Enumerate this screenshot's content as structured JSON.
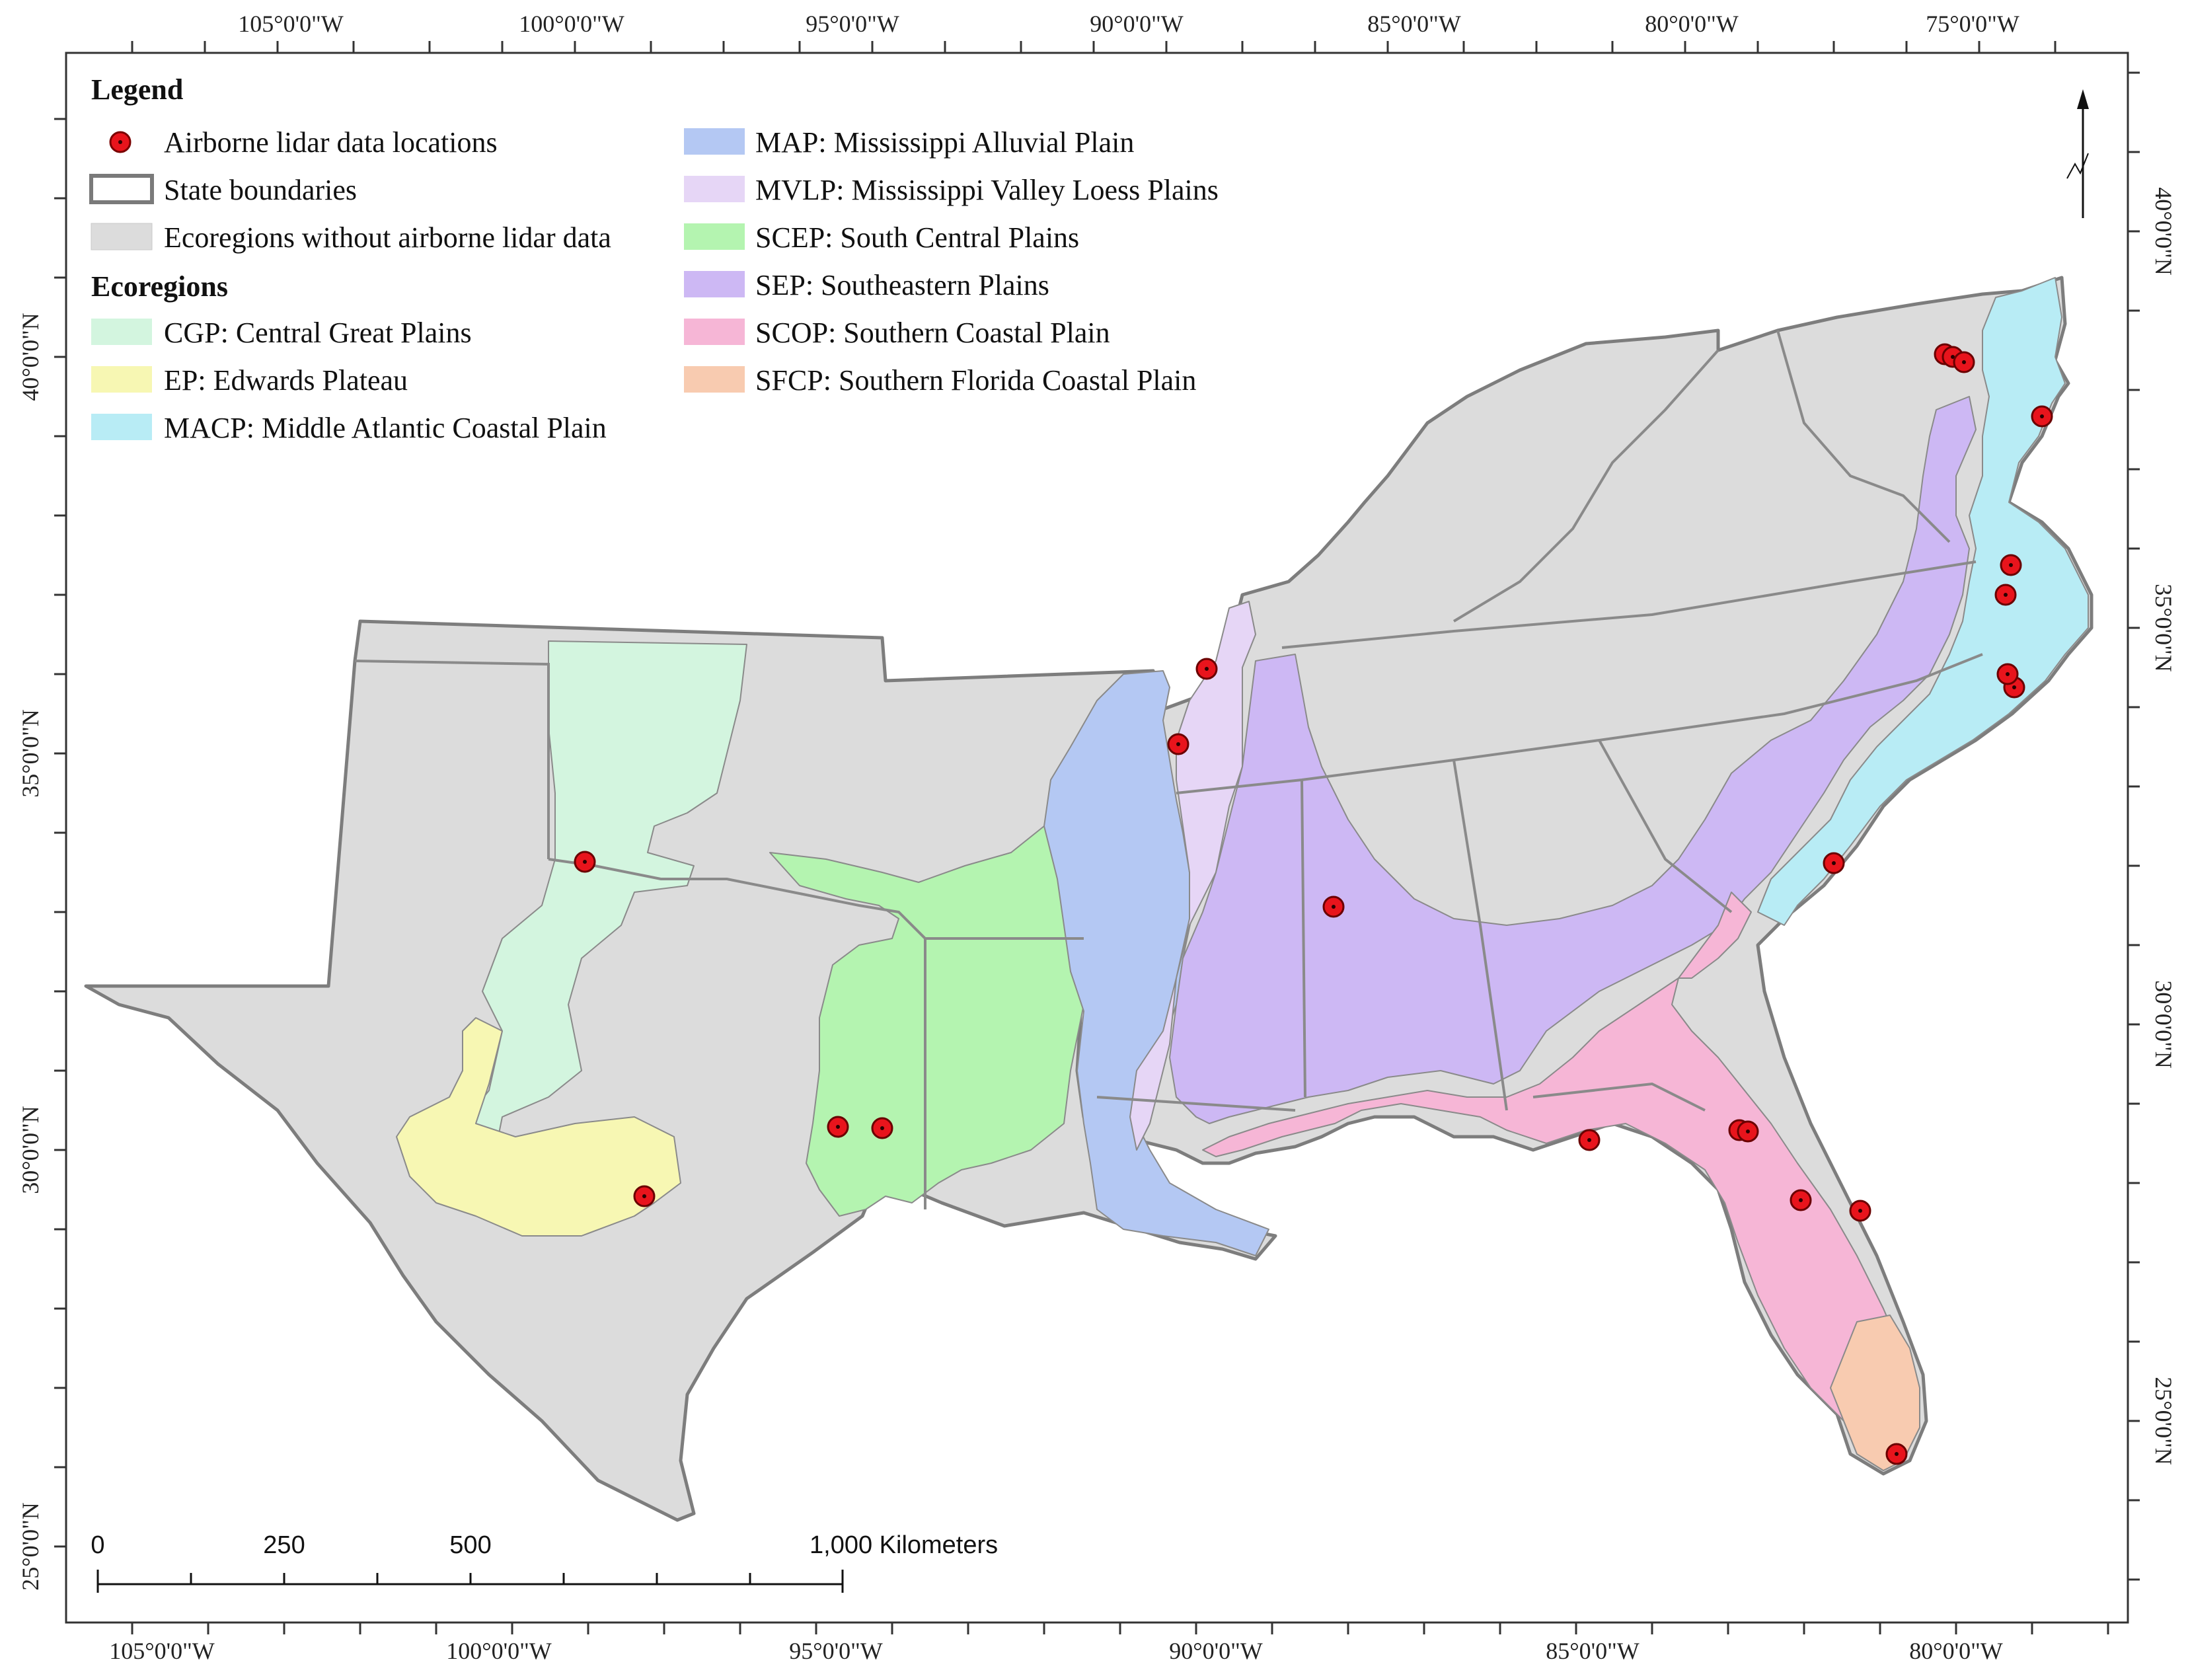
{
  "map": {
    "top_ticks": [
      "105°0'0\"W",
      "100°0'0\"W",
      "95°0'0\"W",
      "90°0'0\"W",
      "85°0'0\"W",
      "80°0'0\"W",
      "75°0'0\"W"
    ],
    "bottom_ticks": [
      "105°0'0\"W",
      "100°0'0\"W",
      "95°0'0\"W",
      "90°0'0\"W",
      "85°0'0\"W",
      "80°0'0\"W"
    ],
    "left_ticks": [
      "40°0'0\"N",
      "35°0'0\"N",
      "30°0'0\"N",
      "25°0'0\"N"
    ],
    "right_ticks": [
      "40°0'0\"N",
      "35°0'0\"N",
      "30°0'0\"N",
      "25°0'0\"N"
    ]
  },
  "legend": {
    "title": "Legend",
    "items": [
      {
        "label": "Airborne lidar data locations",
        "symbol": "point",
        "color": "#e8141c"
      },
      {
        "label": "State boundaries",
        "symbol": "outline",
        "color": "#7a7a7a"
      },
      {
        "label": "Ecoregions without airborne lidar data",
        "symbol": "fill",
        "color": "#dcdcdc"
      }
    ],
    "ecoregions_title": "Ecoregions",
    "ecoregions": [
      {
        "label": "CGP: Central Great Plains",
        "color": "#d3f5df"
      },
      {
        "label": "EP: Edwards Plateau",
        "color": "#f7f7b3"
      },
      {
        "label": "MACP: Middle Atlantic Coastal Plain",
        "color": "#b8ecf5"
      },
      {
        "label": "MAP: Mississippi Alluvial Plain",
        "color": "#b4c8f3"
      },
      {
        "label": "MVLP: Mississippi Valley Loess Plains",
        "color": "#e6d6f6"
      },
      {
        "label": "SCEP: South Central Plains",
        "color": "#b4f4b0"
      },
      {
        "label": "SEP: Southeastern Plains",
        "color": "#cdb8f4"
      },
      {
        "label": "SCOP: Southern Coastal Plain",
        "color": "#f6b6d6"
      },
      {
        "label": "SFCP: Southern Florida Coastal Plain",
        "color": "#f8cbb0"
      }
    ]
  },
  "scale_bar": {
    "labels": [
      "0",
      "250",
      "500",
      "1,000 Kilometers"
    ]
  },
  "north_arrow": {
    "icon": "north-arrow-icon"
  },
  "lidar_sites_count": 24
}
